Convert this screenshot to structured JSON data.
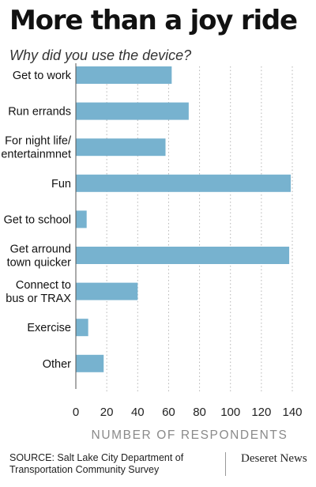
{
  "header": {
    "title": "More than a joy ride",
    "subtitle": "Why did you use the device?"
  },
  "chart_data": {
    "type": "bar",
    "orientation": "horizontal",
    "categories": [
      [
        "Get to work"
      ],
      [
        "Run errands"
      ],
      [
        "For night life/",
        "entertainmnet"
      ],
      [
        "Fun"
      ],
      [
        "Get to school"
      ],
      [
        "Get arround",
        "town quicker"
      ],
      [
        "Connect to",
        "bus or TRAX"
      ],
      [
        "Exercise"
      ],
      [
        "Other"
      ]
    ],
    "values": [
      62,
      73,
      58,
      139,
      7,
      138,
      40,
      8,
      18
    ],
    "xlabel": "NUMBER OF RESPONDENTS",
    "xticks": [
      0,
      20,
      40,
      60,
      80,
      100,
      120,
      140
    ],
    "xlim": [
      0,
      140
    ],
    "grid": "vertical dotted",
    "bar_color": "#77b2cf"
  },
  "footer": {
    "source_lines": [
      "SOURCE: Salt Lake City Department of",
      "Transportation Community Survey"
    ],
    "brand": "Deseret News"
  }
}
